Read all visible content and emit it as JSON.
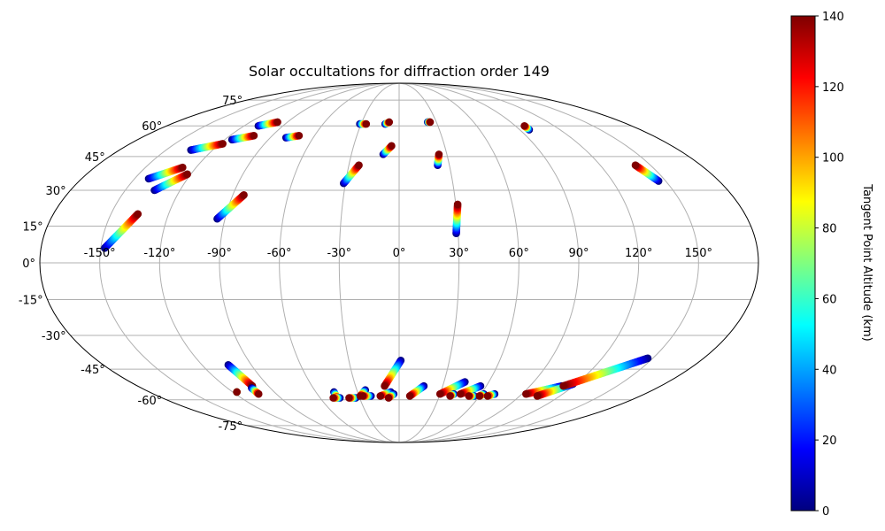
{
  "chart_data": {
    "type": "scatter",
    "projection": "mollweide",
    "title": "Solar occultations for diffraction order 149",
    "x_ticks": [
      "-150°",
      "-120°",
      "-90°",
      "-60°",
      "-30°",
      "0°",
      "30°",
      "60°",
      "90°",
      "120°",
      "150°"
    ],
    "y_ticks": [
      "75°",
      "60°",
      "45°",
      "30°",
      "15°",
      "0°",
      "-15°",
      "-30°",
      "-45°",
      "-60°",
      "-75°"
    ],
    "grid": true,
    "colorbar": {
      "label": "Tangent Point Altitude (km)",
      "colormap": "jet",
      "range": [
        0,
        140
      ],
      "ticks": [
        "0",
        "20",
        "40",
        "60",
        "80",
        "100",
        "120",
        "140"
      ],
      "placement": "right"
    },
    "series": [
      {
        "lon0": -148,
        "lat0": 6,
        "lon1": -136,
        "lat1": 20
      },
      {
        "lon0": -142,
        "lat0": 35,
        "lon1": -128,
        "lat1": 40
      },
      {
        "lon0": -134,
        "lat0": 30,
        "lon1": -122,
        "lat1": 37
      },
      {
        "lon0": -134,
        "lat0": 48,
        "lon1": -118,
        "lat1": 51
      },
      {
        "lon0": -115,
        "lat0": 53,
        "lon1": -103,
        "lat1": 55
      },
      {
        "lon0": -109,
        "lat0": 60,
        "lon1": -98,
        "lat1": 62
      },
      {
        "lon0": -94,
        "lat0": 18,
        "lon1": -84,
        "lat1": 28
      },
      {
        "lon0": -79,
        "lat0": 54,
        "lon1": -71,
        "lat1": 55
      },
      {
        "lon0": -31,
        "lat0": 33,
        "lon1": -24,
        "lat1": 41
      },
      {
        "lon0": -31,
        "lat0": 61,
        "lon1": -26,
        "lat1": 61
      },
      {
        "lon0": -11,
        "lat0": 61,
        "lon1": -8,
        "lat1": 62
      },
      {
        "lon0": -10,
        "lat0": 46,
        "lon1": -5,
        "lat1": 50
      },
      {
        "lon0": 23,
        "lat0": 41,
        "lon1": 25,
        "lat1": 46
      },
      {
        "lon0": 23,
        "lat0": 62,
        "lon1": 25,
        "lat1": 62
      },
      {
        "lon0": 29,
        "lat0": 12,
        "lon1": 31,
        "lat1": 24
      },
      {
        "lon0": 97,
        "lat0": 58,
        "lon1": 97,
        "lat1": 60
      },
      {
        "lon0": 146,
        "lat0": 34,
        "lon1": 141,
        "lat1": 41
      },
      {
        "lon0": -117,
        "lat0": -56,
        "lon1": -117,
        "lat1": -56
      },
      {
        "lon0": -104,
        "lat0": -43,
        "lon1": -101,
        "lat1": -53
      },
      {
        "lon0": -103,
        "lat0": -54,
        "lon1": -103,
        "lat1": -57
      },
      {
        "lon0": -47,
        "lat0": -56,
        "lon1": -47,
        "lat1": -59
      },
      {
        "lon0": -45,
        "lat0": -59,
        "lon1": -50,
        "lat1": -59
      },
      {
        "lon0": -33,
        "lat0": -59,
        "lon1": -38,
        "lat1": -59
      },
      {
        "lon0": -24,
        "lat0": -55,
        "lon1": -29,
        "lat1": -58
      },
      {
        "lon0": -21,
        "lat0": -58,
        "lon1": -27,
        "lat1": -58
      },
      {
        "lon0": 1,
        "lat0": -41,
        "lon1": -10,
        "lat1": -53
      },
      {
        "lon0": -6,
        "lat0": -56,
        "lon1": -14,
        "lat1": -58
      },
      {
        "lon0": -4,
        "lat0": -57,
        "lon1": -8,
        "lat1": -59
      },
      {
        "lon0": 17,
        "lat0": -53,
        "lon1": 8,
        "lat1": -58
      },
      {
        "lon0": 44,
        "lat0": -51,
        "lon1": 30,
        "lat1": -57
      },
      {
        "lon0": 40,
        "lat0": -57,
        "lon1": 38,
        "lat1": -58
      },
      {
        "lon0": 56,
        "lat0": -53,
        "lon1": 45,
        "lat1": -57
      },
      {
        "lon0": 56,
        "lat0": -58,
        "lon1": 52,
        "lat1": -58
      },
      {
        "lon0": 62,
        "lat0": -57,
        "lon1": 60,
        "lat1": -58
      },
      {
        "lon0": 70,
        "lat0": -57,
        "lon1": 66,
        "lat1": -58
      },
      {
        "lon0": 112,
        "lat0": -53,
        "lon1": 93,
        "lat1": -57
      },
      {
        "lon0": 118,
        "lat0": -52,
        "lon1": 103,
        "lat1": -58
      },
      {
        "lon0": 147,
        "lat0": -40,
        "lon1": 113,
        "lat1": -53
      }
    ]
  }
}
